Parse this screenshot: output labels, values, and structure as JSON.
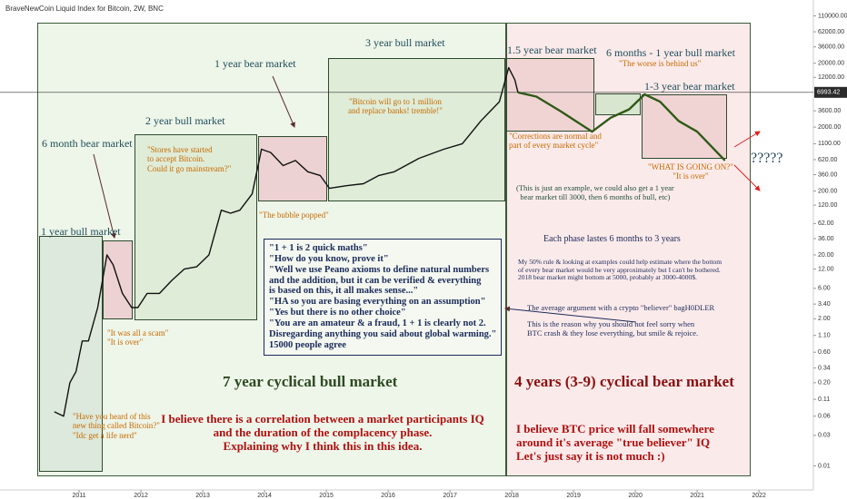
{
  "chart_data": {
    "type": "line",
    "title": "BraveNewCoin Liquid Index for Bitcoin, 2W, BNC",
    "log_scale": true,
    "x": [
      2010.6,
      2010.75,
      2010.85,
      2010.95,
      2011.05,
      2011.15,
      2011.3,
      2011.45,
      2011.55,
      2011.7,
      2011.85,
      2011.95,
      2012.1,
      2012.3,
      2012.5,
      2012.7,
      2012.9,
      2013.1,
      2013.3,
      2013.45,
      2013.6,
      2013.8,
      2013.95,
      2014.1,
      2014.3,
      2014.5,
      2014.7,
      2014.9,
      2015.05,
      2015.3,
      2015.6,
      2015.85,
      2016.1,
      2016.5,
      2016.9,
      2017.2,
      2017.5,
      2017.8,
      2017.95,
      2018.05,
      2018.1,
      2018.4,
      2018.8,
      2019.3,
      2019.6,
      2019.9,
      2020.15,
      2020.4,
      2020.7,
      2021.0,
      2021.45
    ],
    "series": [
      {
        "color": "#111111",
        "values": [
          0.07,
          0.06,
          0.2,
          0.3,
          0.9,
          0.9,
          3,
          20,
          14,
          5,
          3,
          3,
          5,
          5,
          8,
          12,
          13,
          20,
          100,
          90,
          100,
          180,
          900,
          800,
          500,
          600,
          400,
          350,
          220,
          240,
          260,
          350,
          400,
          650,
          900,
          1100,
          2500,
          5000,
          17000,
          11000,
          7000,
          null,
          null,
          null,
          null,
          null,
          null,
          null,
          null,
          null,
          null
        ]
      },
      {
        "color": "#2f5a16",
        "values": [
          null,
          null,
          null,
          null,
          null,
          null,
          null,
          null,
          null,
          null,
          null,
          null,
          null,
          null,
          null,
          null,
          null,
          null,
          null,
          null,
          null,
          null,
          null,
          null,
          null,
          null,
          null,
          null,
          null,
          null,
          null,
          null,
          null,
          null,
          null,
          null,
          null,
          null,
          null,
          null,
          7000,
          6000,
          3500,
          1700,
          2800,
          3800,
          6500,
          5000,
          2500,
          1700,
          600
        ]
      }
    ],
    "xlim": [
      2009.72,
      2022.88
    ],
    "xticks": [
      2011,
      2012,
      2013,
      2014,
      2015,
      2016,
      2017,
      2018,
      2019,
      2020,
      2021,
      2022
    ],
    "ylim": [
      0.0042,
      195000
    ],
    "yticks": [
      {
        "value": 110000,
        "label": "110000.00"
      },
      {
        "value": 62000,
        "label": "62000.00"
      },
      {
        "value": 36000,
        "label": "36000.00"
      },
      {
        "value": 20000,
        "label": "20000.00"
      },
      {
        "value": 12000,
        "label": "12000.00"
      },
      {
        "value": 3600,
        "label": "3600.00"
      },
      {
        "value": 2000,
        "label": "2000.00"
      },
      {
        "value": 1100,
        "label": "1100.00"
      },
      {
        "value": 620,
        "label": "620.00"
      },
      {
        "value": 360,
        "label": "360.00"
      },
      {
        "value": 200,
        "label": "200.00"
      },
      {
        "value": 120,
        "label": "120.00"
      },
      {
        "value": 62,
        "label": "62.00"
      },
      {
        "value": 36,
        "label": "36.00"
      },
      {
        "value": 20,
        "label": "20.00"
      },
      {
        "value": 12,
        "label": "12.00"
      },
      {
        "value": 6,
        "label": "6.00"
      },
      {
        "value": 3.4,
        "label": "3.40"
      },
      {
        "value": 2,
        "label": "2.00"
      },
      {
        "value": 1.1,
        "label": "1.10"
      },
      {
        "value": 0.6,
        "label": "0.60"
      },
      {
        "value": 0.34,
        "label": "0.34"
      },
      {
        "value": 0.2,
        "label": "0.20"
      },
      {
        "value": 0.11,
        "label": "0.11"
      },
      {
        "value": 0.06,
        "label": "0.06"
      },
      {
        "value": 0.03,
        "label": "0.03"
      },
      {
        "value": 0.01,
        "label": "0.01"
      }
    ],
    "last_price": 6993.42,
    "annotations": [
      "1 year bull market",
      "6 month bear market",
      "2 year bull market",
      "1 year bear market",
      "3 year bull market",
      "1.5 year bear market",
      "6 months - 1 year bull market",
      "\"The worse is behind us\"",
      "1-3 year bear market",
      "\"Bitcoin will go to 1 million\nand replace banks! tremble!\"",
      "\"Stores have started\nto accept Bitcoin.\nCould it go mainstream?\"",
      "\"The bubble popped\"",
      "\"Corrections are normal and\npart of every market cycle\"",
      "\"WHAT IS GOING ON?\"\n\"It is over\"",
      "?????",
      "(This is just an example, we could also get a 1 year\nbear market till 3000, then 6 months of bull, etc)",
      "Each phase lastes 6 months to 3 years",
      "My 50% rule & looking at examples could help estimate where the bottom\nof every bear market would be very approximately but I can't be bothered.\n2018 bear market might bottom at 5000, probably at 3000-4000$.",
      "The average argument with a crypto \"believer\" bagH0DLER",
      "This is the reason why you should not feel sorry when\nBTC crash & they lose everything, but smile & rejoice.",
      "\"It was all a scam\"\n\"It is over\"",
      "\"Have you heard of this\nnew thing called Bitcoin?\"\n\"Idc get a life nerd\"",
      "\"1 + 1 is 2 quick maths\"\n\"How do you know, prove it\"\n\"Well we use Peano axioms to define natural numbers\nand the addition, but it can be verified & everything\nis based on this, it all makes sense...\"\n\"HA so you are basing everything on an assumption\"\n\"Yes but there is no other choice\"\n\"You are an amateur & a fraud, 1 + 1 is clearly not 2.\nDisregarding anything you said about global warming.\"\n15000 people agree",
      "7 year cyclical bull market",
      "4 years (3-9) cyclical bear market",
      "I believe there is a correlation between a market participants IQ\nand the duration of the complacency phase.\nExplaining why I think this in this idea.",
      "I believe BTC price will fall somewhere\naround it's average \"true believer\" IQ\nLet's just say it is not much :)"
    ]
  }
}
